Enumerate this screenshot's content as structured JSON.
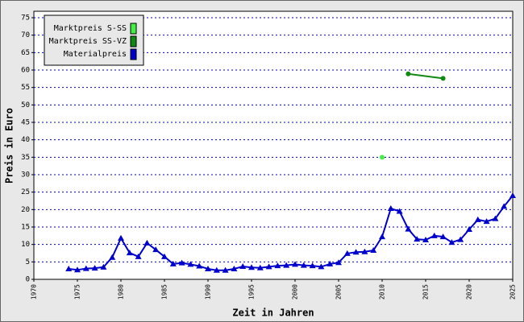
{
  "chart_data": {
    "type": "line",
    "x_label": "Zeit in Jahren",
    "y_label": "Preis in Euro",
    "xlim": [
      1970,
      2025
    ],
    "xticks": [
      1970,
      1975,
      1980,
      1985,
      1990,
      1995,
      2000,
      2005,
      2010,
      2015,
      2020,
      2025
    ],
    "ylim": [
      0,
      75
    ],
    "yticks": [
      0,
      5,
      10,
      15,
      20,
      25,
      30,
      35,
      40,
      45,
      50,
      55,
      60,
      65,
      70,
      75
    ],
    "grid": true,
    "legend": "top-left",
    "series": [
      {
        "name": "Marktpreis S-SS",
        "color": "#44ee44",
        "marker": "circle",
        "x": [
          2010
        ],
        "values": [
          35
        ]
      },
      {
        "name": "Marktpreis SS-VZ",
        "color": "#118811",
        "marker": "circle",
        "x": [
          2013,
          2017
        ],
        "values": [
          58.9,
          57.6
        ]
      },
      {
        "name": "Materialpreis",
        "color": "#0000cc",
        "marker": "triangle",
        "x": [
          1974,
          1975,
          1976,
          1977,
          1978,
          1979,
          1980,
          1981,
          1982,
          1983,
          1984,
          1985,
          1986,
          1987,
          1988,
          1989,
          1990,
          1991,
          1992,
          1993,
          1994,
          1995,
          1996,
          1997,
          1998,
          1999,
          2000,
          2001,
          2002,
          2003,
          2004,
          2005,
          2006,
          2007,
          2008,
          2009,
          2010,
          2011,
          2012,
          2013,
          2014,
          2015,
          2016,
          2017,
          2018,
          2019,
          2020,
          2021,
          2022,
          2023,
          2024,
          2025
        ],
        "values": [
          3.0,
          2.7,
          3.1,
          3.2,
          3.5,
          6.3,
          11.8,
          7.6,
          6.5,
          10.4,
          8.5,
          6.5,
          4.4,
          4.7,
          4.3,
          3.8,
          3.0,
          2.6,
          2.6,
          3.0,
          3.7,
          3.4,
          3.3,
          3.6,
          3.9,
          4.0,
          4.3,
          4.0,
          3.9,
          3.6,
          4.4,
          4.8,
          7.4,
          7.8,
          7.9,
          8.3,
          12.2,
          20.3,
          19.5,
          14.4,
          11.5,
          11.3,
          12.5,
          12.2,
          10.6,
          11.4,
          14.3,
          17.1,
          16.6,
          17.4,
          20.9,
          24.0
        ]
      }
    ]
  }
}
